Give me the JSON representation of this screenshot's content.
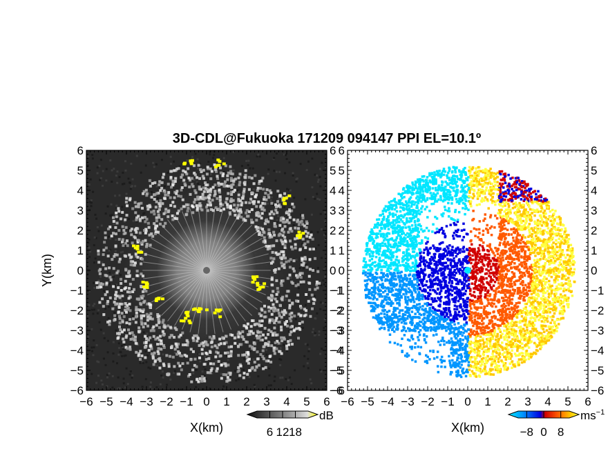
{
  "chart_data": [
    {
      "type": "heatmap",
      "title": "3D-CDL@Fukuoka 171209 094147 PPI EL=10.1º",
      "xlabel": "X(km)",
      "ylabel": "Y(km)",
      "xlim": [
        -6,
        6
      ],
      "ylim": [
        -6,
        6
      ],
      "xticks": [
        "−6",
        "−5",
        "−4",
        "−3",
        "−2",
        "−1",
        "0",
        "1",
        "2",
        "3",
        "4",
        "5",
        "6"
      ],
      "yticks": [
        "6",
        "5",
        "4",
        "3",
        "2",
        "1",
        "0",
        "−1",
        "−2",
        "−3",
        "−4",
        "−5",
        "−6"
      ],
      "background": "#2a2a2a",
      "colorbar": {
        "unit": "dB",
        "ticks": [
          "6",
          "12",
          "18"
        ],
        "range": [
          0,
          24
        ],
        "colors": [
          "#111111",
          "#555555",
          "#999999",
          "#dddddd",
          "#ffff00"
        ]
      }
    },
    {
      "type": "heatmap",
      "xlabel": "X(km)",
      "xlim": [
        -6,
        6
      ],
      "ylim": [
        -6,
        6
      ],
      "xticks": [
        "−6",
        "−5",
        "−4",
        "−3",
        "−2",
        "−1",
        "0",
        "1",
        "2",
        "3",
        "4",
        "5",
        "6"
      ],
      "yticks": [
        "6",
        "5",
        "4",
        "3",
        "2",
        "1",
        "0",
        "−1",
        "−2",
        "−3",
        "−4",
        "−5",
        "−6"
      ],
      "background": "#ffffff",
      "colorbar": {
        "unit": "ms",
        "unit_exp": "−1",
        "ticks": [
          "−8",
          "0",
          "8"
        ],
        "range": [
          -12,
          12
        ],
        "colors": [
          "#00e6ff",
          "#0096ff",
          "#0000e0",
          "#d00000",
          "#ff5a00",
          "#ffc800",
          "#ffff40"
        ]
      }
    }
  ]
}
